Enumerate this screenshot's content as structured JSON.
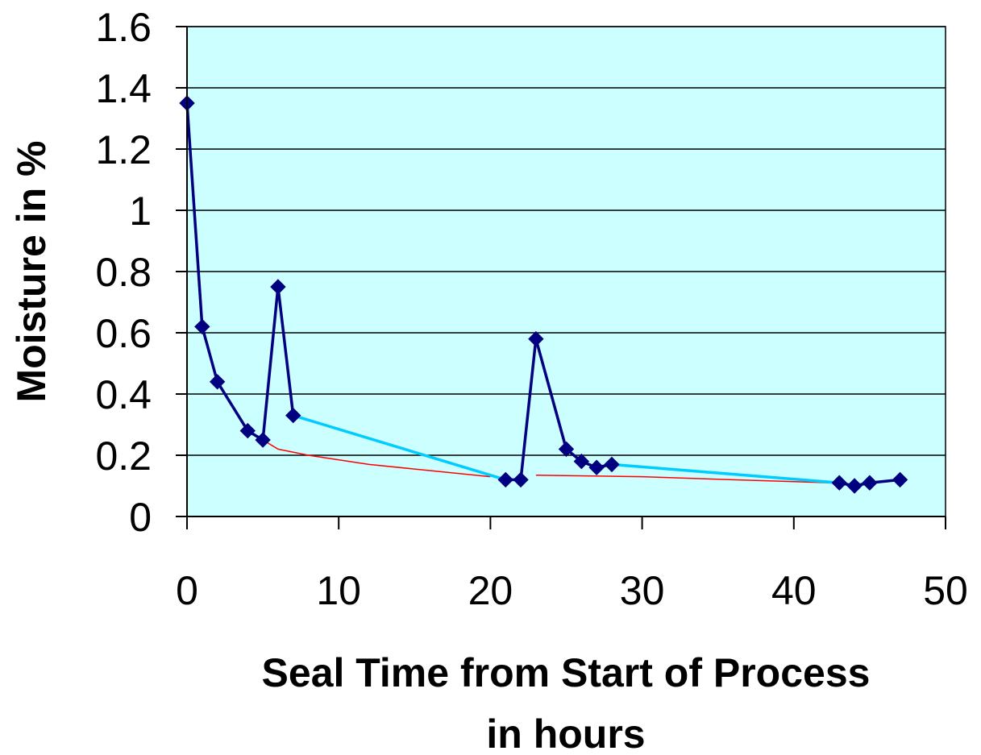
{
  "chart_data": {
    "type": "line",
    "title": "",
    "xlabel_lines": [
      "Seal Time from Start of Process",
      "in hours"
    ],
    "ylabel": "Moisture in %",
    "xlim": [
      0,
      50
    ],
    "ylim": [
      0,
      1.6
    ],
    "x_ticks": [
      0,
      10,
      20,
      30,
      40,
      50
    ],
    "x_tick_labels": [
      "0",
      "10",
      "20",
      "30",
      "40",
      "50"
    ],
    "y_ticks": [
      0,
      0.2,
      0.4,
      0.6,
      0.8,
      1,
      1.2,
      1.4,
      1.6
    ],
    "y_tick_labels": [
      "0",
      "0.2",
      "0.4",
      "0.6",
      "0.8",
      "1",
      "1.2",
      "1.4",
      "1.6"
    ],
    "grid": "horizontal",
    "legend": "none",
    "series": [
      {
        "role": "measured",
        "color": "#000080",
        "marker": "diamond",
        "points": [
          [
            0,
            1.35
          ],
          [
            1,
            0.62
          ],
          [
            2,
            0.44
          ],
          [
            4,
            0.28
          ],
          [
            5,
            0.25
          ],
          [
            6,
            0.75
          ],
          [
            7,
            0.33
          ],
          [
            21,
            0.12
          ],
          [
            22,
            0.12
          ],
          [
            23,
            0.58
          ],
          [
            25,
            0.22
          ],
          [
            26,
            0.18
          ],
          [
            27,
            0.16
          ],
          [
            28,
            0.17
          ],
          [
            43,
            0.11
          ],
          [
            44,
            0.1
          ],
          [
            45,
            0.11
          ],
          [
            47,
            0.12
          ]
        ],
        "segment_colors": [
          "#000080",
          "#000080",
          "#000080",
          "#000080",
          "#000080",
          "#000080",
          "#00ccff",
          "#000080",
          "#000080",
          "#000080",
          "#000080",
          "#000080",
          "#000080",
          "#00ccff",
          "#000080",
          "#000080",
          "#000080"
        ]
      },
      {
        "role": "trend",
        "color": "#ff0000",
        "marker": "none",
        "segments": [
          [
            [
              5,
              0.25
            ],
            [
              6,
              0.22
            ],
            [
              8,
              0.2
            ],
            [
              12,
              0.17
            ],
            [
              16,
              0.15
            ],
            [
              20,
              0.13
            ]
          ],
          [
            [
              23,
              0.135
            ],
            [
              30,
              0.13
            ],
            [
              36,
              0.12
            ],
            [
              42.5,
              0.11
            ]
          ]
        ]
      }
    ],
    "colors": {
      "plot_background": "#ccffff",
      "gridline": "#000000",
      "axis": "#000000"
    }
  }
}
